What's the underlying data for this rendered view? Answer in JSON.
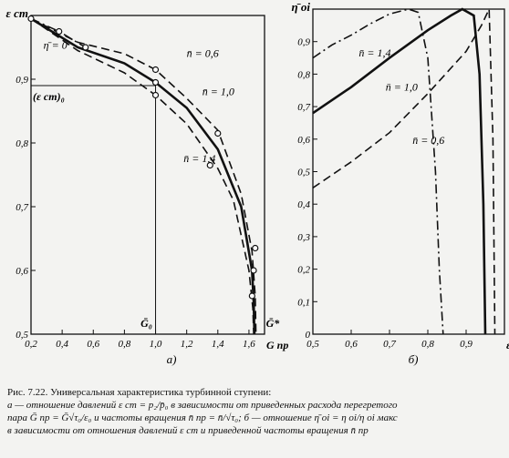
{
  "chart_data": [
    {
      "panel_label": "а)",
      "type": "line",
      "title": "",
      "ylabel": "ε ст",
      "xlabel": "G пр",
      "xlim": [
        0.2,
        1.7
      ],
      "ylim": [
        0.5,
        1.0
      ],
      "x_ticks": [
        0.2,
        0.4,
        0.6,
        0.8,
        1.0,
        1.2,
        1.4,
        1.6
      ],
      "x_tick_labels": [
        "0,2",
        "0,4",
        "0,6",
        "0,8",
        "1,0",
        "1,2",
        "1,4",
        "1,6"
      ],
      "y_ticks": [
        0.5,
        0.6,
        0.7,
        0.8,
        0.9
      ],
      "y_tick_labels": [
        "0,5",
        "0,6",
        "0,7",
        "0,8",
        "0,9"
      ],
      "grid": false,
      "series": [
        {
          "name": "n̄ = 0,6",
          "style": "dashed",
          "x": [
            0.2,
            0.5,
            0.8,
            1.0,
            1.2,
            1.4,
            1.55,
            1.62,
            1.64,
            1.645
          ],
          "y": [
            0.995,
            0.958,
            0.94,
            0.915,
            0.87,
            0.82,
            0.72,
            0.63,
            0.56,
            0.5
          ]
        },
        {
          "name": "n̄ = 1,0",
          "style": "solid",
          "x": [
            0.2,
            0.5,
            0.8,
            1.0,
            1.2,
            1.4,
            1.55,
            1.62,
            1.63,
            1.635
          ],
          "y": [
            0.995,
            0.95,
            0.925,
            0.895,
            0.855,
            0.79,
            0.7,
            0.6,
            0.55,
            0.5
          ]
        },
        {
          "name": "n̄ = 1,4",
          "style": "dashed",
          "x": [
            0.2,
            0.5,
            0.8,
            1.0,
            1.2,
            1.4,
            1.5,
            1.6,
            1.625,
            1.63
          ],
          "y": [
            0.995,
            0.945,
            0.91,
            0.875,
            0.83,
            0.76,
            0.71,
            0.6,
            0.54,
            0.5
          ]
        },
        {
          "name": "η̄ = 0",
          "style": "dash-dot",
          "x": [
            0.2,
            0.38,
            0.55
          ],
          "y": [
            0.995,
            0.975,
            0.95
          ]
        }
      ],
      "markers": [
        {
          "x": 0.2,
          "y": 0.995
        },
        {
          "x": 0.38,
          "y": 0.975
        },
        {
          "x": 0.55,
          "y": 0.95
        },
        {
          "x": 1.0,
          "y": 0.915
        },
        {
          "x": 1.0,
          "y": 0.895
        },
        {
          "x": 1.0,
          "y": 0.875
        },
        {
          "x": 1.4,
          "y": 0.815
        },
        {
          "x": 1.35,
          "y": 0.765
        },
        {
          "x": 1.64,
          "y": 0.635
        },
        {
          "x": 1.63,
          "y": 0.6
        },
        {
          "x": 1.62,
          "y": 0.56
        }
      ],
      "reference": {
        "x": 1.0,
        "y": 0.89,
        "y_label": "(ε ст)₀",
        "x_label": "Ḡ₀",
        "x_star": 1.635,
        "x_star_label": "Ḡ*"
      },
      "annotations": [
        {
          "text": "n̄ = 0,6",
          "x": 1.2,
          "y": 0.935
        },
        {
          "text": "n̄ = 1,0",
          "x": 1.3,
          "y": 0.875
        },
        {
          "text": "n̄ = 1,4",
          "x": 1.18,
          "y": 0.77
        },
        {
          "text": "η̄ = 0",
          "x": 0.28,
          "y": 0.948
        }
      ]
    },
    {
      "panel_label": "б)",
      "type": "line",
      "title": "",
      "ylabel": "η̄ oi",
      "xlabel": "ε ст",
      "xlim": [
        0.5,
        1.0
      ],
      "ylim": [
        0.0,
        1.0
      ],
      "x_ticks": [
        0.5,
        0.6,
        0.7,
        0.8,
        0.9
      ],
      "x_tick_labels": [
        "0,5",
        "0,6",
        "0,7",
        "0,8",
        "0,9"
      ],
      "y_ticks": [
        0.0,
        0.1,
        0.2,
        0.3,
        0.4,
        0.5,
        0.6,
        0.7,
        0.8,
        0.9
      ],
      "y_tick_labels": [
        "0",
        "0,1",
        "0,2",
        "0,3",
        "0,4",
        "0,5",
        "0,6",
        "0,7",
        "0,8",
        "0,9"
      ],
      "grid": false,
      "series": [
        {
          "name": "n̄ = 1,4",
          "style": "dash-dot",
          "x": [
            0.5,
            0.55,
            0.6,
            0.65,
            0.7,
            0.75,
            0.775,
            0.8,
            0.82,
            0.83,
            0.84
          ],
          "y": [
            0.85,
            0.89,
            0.92,
            0.955,
            0.985,
            1.0,
            0.99,
            0.85,
            0.5,
            0.2,
            0.0
          ]
        },
        {
          "name": "n̄ = 1,0",
          "style": "solid",
          "x": [
            0.5,
            0.6,
            0.7,
            0.8,
            0.86,
            0.89,
            0.92,
            0.935,
            0.945,
            0.95
          ],
          "y": [
            0.68,
            0.76,
            0.85,
            0.935,
            0.98,
            1.0,
            0.98,
            0.8,
            0.4,
            0.0
          ]
        },
        {
          "name": "n̄ = 0,6",
          "style": "dashed",
          "x": [
            0.5,
            0.6,
            0.7,
            0.8,
            0.9,
            0.94,
            0.96,
            0.97,
            0.975
          ],
          "y": [
            0.45,
            0.53,
            0.62,
            0.74,
            0.87,
            0.95,
            1.0,
            0.6,
            0.0
          ]
        }
      ],
      "annotations": [
        {
          "text": "n̄ = 1,4",
          "x": 0.62,
          "y": 0.855
        },
        {
          "text": "n̄ = 1,0",
          "x": 0.69,
          "y": 0.75
        },
        {
          "text": "n̄ = 0,6",
          "x": 0.76,
          "y": 0.585
        }
      ]
    }
  ],
  "caption": {
    "line1": "Рис. 7.22. Универсальная характеристика турбинной ступени:",
    "line2": "а — отношение давлений ε ст = p₂/p̄₀ в зависимости от приведенных расхода перегретого",
    "line3": "пара Ḡ пр = Ḡ√τ₀/ε₀ и частоты вращения n̄ пр = n̄/√τ₀; б — отношение η̄ oi = η oi/η oi макс",
    "line4": "в зависимости от отношения давлений ε ст и приведенной частоты вращения n̄ пр"
  }
}
